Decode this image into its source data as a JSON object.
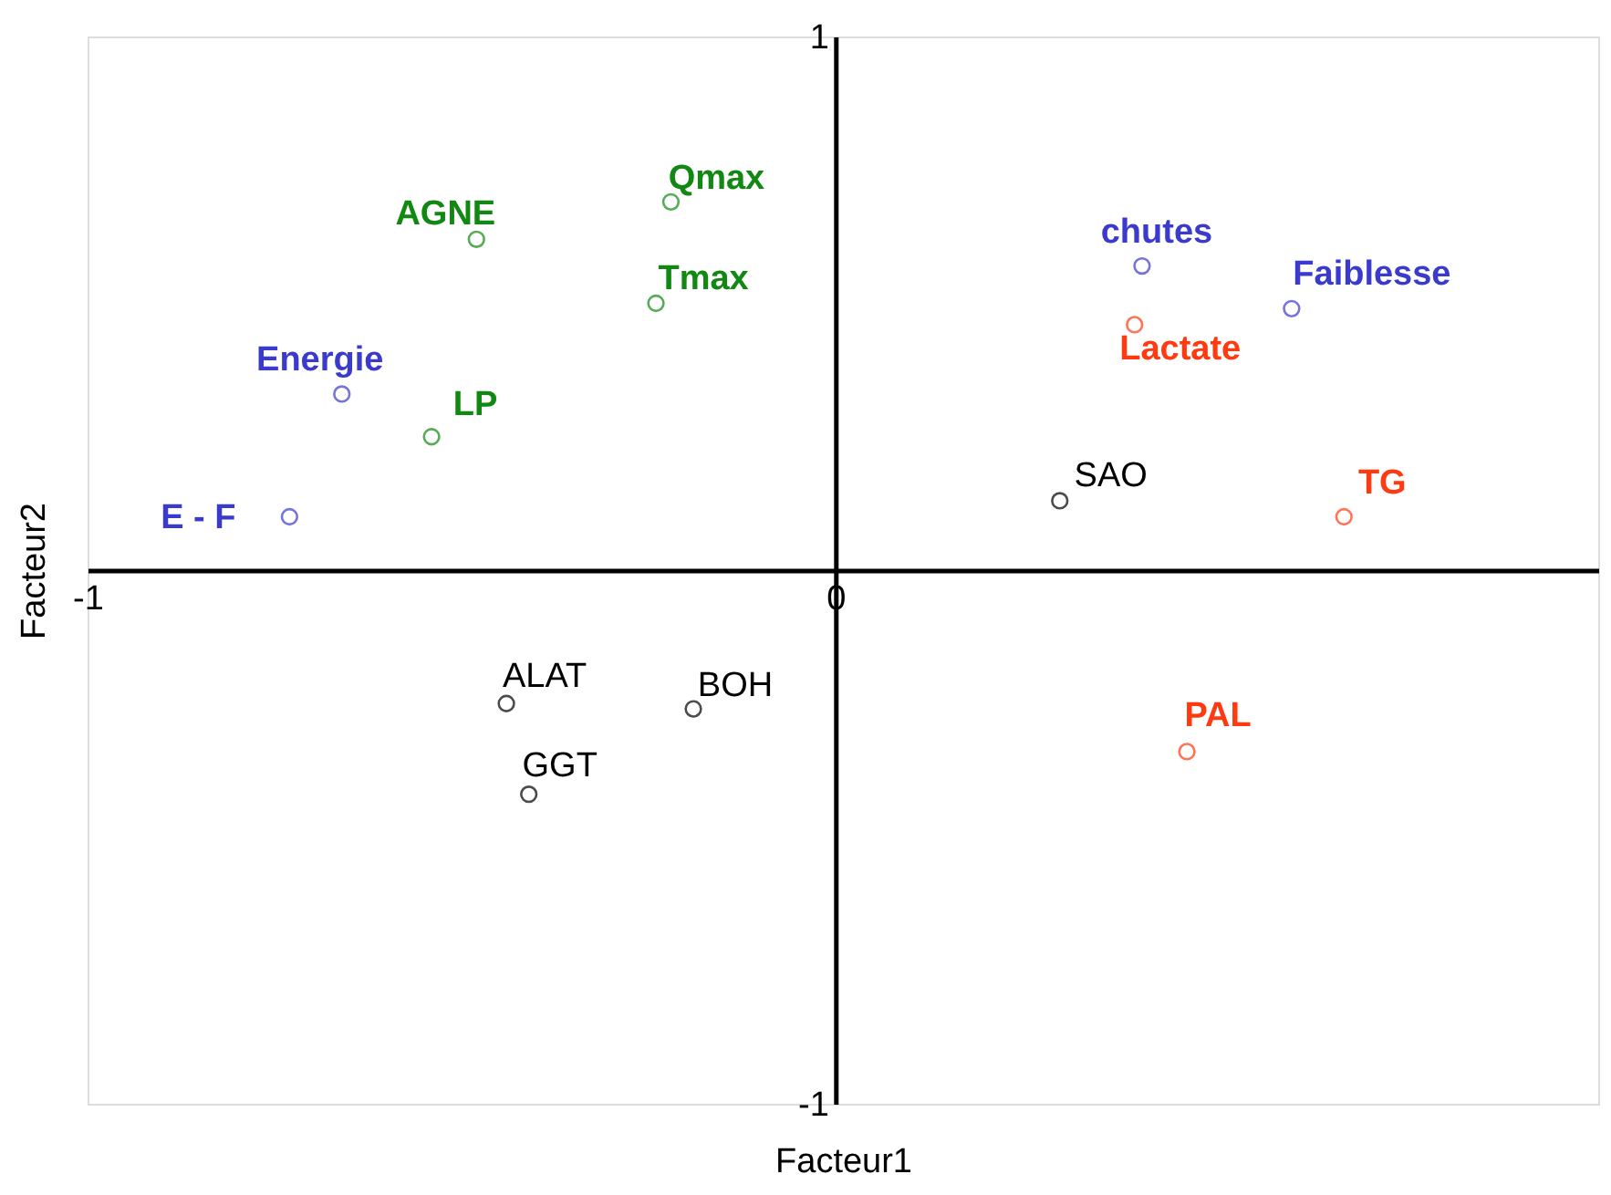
{
  "chart_data": {
    "type": "scatter",
    "xlabel": "Facteur1",
    "ylabel": "Facteur2",
    "xlim": [
      -1,
      1.02
    ],
    "ylim": [
      -1,
      1
    ],
    "xticks": [
      -1,
      0
    ],
    "yticks": [
      -1,
      1
    ],
    "marker": "circle",
    "series": [
      {
        "name": "AGNE",
        "color": "#118811",
        "x": [
          -0.48
        ],
        "values": [
          0.62
        ]
      },
      {
        "name": "Qmax",
        "color": "#118811",
        "x": [
          -0.22
        ],
        "values": [
          0.69
        ]
      },
      {
        "name": "Tmax",
        "color": "#118811",
        "x": [
          -0.24
        ],
        "values": [
          0.5
        ]
      },
      {
        "name": "Energie",
        "color": "#3a3acc",
        "x": [
          -0.66
        ],
        "values": [
          0.33
        ]
      },
      {
        "name": "LP",
        "color": "#118811",
        "x": [
          -0.54
        ],
        "values": [
          0.25
        ]
      },
      {
        "name": "E - F",
        "color": "#3a3acc",
        "x": [
          -0.73
        ],
        "values": [
          0.1
        ]
      },
      {
        "name": "chutes",
        "color": "#3a3acc",
        "x": [
          0.41
        ],
        "values": [
          0.57
        ]
      },
      {
        "name": "Faiblesse",
        "color": "#3a3acc",
        "x": [
          0.61
        ],
        "values": [
          0.49
        ]
      },
      {
        "name": "Lactate",
        "color": "#ff3a10",
        "x": [
          0.4
        ],
        "values": [
          0.46
        ]
      },
      {
        "name": "SAO",
        "color": "#000000",
        "x": [
          0.3
        ],
        "values": [
          0.13
        ]
      },
      {
        "name": "TG",
        "color": "#ff3a10",
        "x": [
          0.68
        ],
        "values": [
          0.1
        ]
      },
      {
        "name": "PAL",
        "color": "#ff3a10",
        "x": [
          0.47
        ],
        "values": [
          -0.34
        ]
      },
      {
        "name": "ALAT",
        "color": "#000000",
        "x": [
          -0.44
        ],
        "values": [
          -0.25
        ]
      },
      {
        "name": "BOH",
        "color": "#000000",
        "x": [
          -0.19
        ],
        "values": [
          -0.26
        ]
      },
      {
        "name": "GGT",
        "color": "#000000",
        "x": [
          -0.41
        ],
        "values": [
          -0.42
        ]
      }
    ]
  }
}
